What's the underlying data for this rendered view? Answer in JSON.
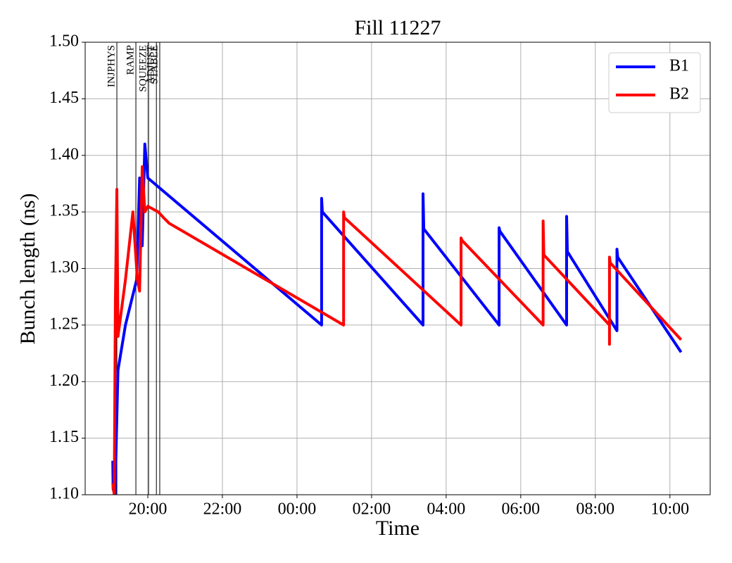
{
  "chart_data": {
    "type": "line",
    "title": "Fill 11227",
    "xlabel": "Time",
    "ylabel": "Bunch length (ns)",
    "xlim": [
      18.32,
      35.08
    ],
    "xticks": [
      {
        "value": 20,
        "label": "20:00"
      },
      {
        "value": 22,
        "label": "22:00"
      },
      {
        "value": 24,
        "label": "00:00"
      },
      {
        "value": 26,
        "label": "02:00"
      },
      {
        "value": 28,
        "label": "04:00"
      },
      {
        "value": 30,
        "label": "06:00"
      },
      {
        "value": 32,
        "label": "08:00"
      },
      {
        "value": 34,
        "label": "10:00"
      }
    ],
    "ylim": [
      1.1,
      1.5
    ],
    "yticks": [
      {
        "value": 1.1,
        "label": "1.10"
      },
      {
        "value": 1.15,
        "label": "1.15"
      },
      {
        "value": 1.2,
        "label": "1.20"
      },
      {
        "value": 1.25,
        "label": "1.25"
      },
      {
        "value": 1.3,
        "label": "1.30"
      },
      {
        "value": 1.35,
        "label": "1.35"
      },
      {
        "value": 1.4,
        "label": "1.40"
      },
      {
        "value": 1.45,
        "label": "1.45"
      },
      {
        "value": 1.5,
        "label": "1.50"
      }
    ],
    "grid": true,
    "legend": "upper right",
    "annotations": [
      {
        "label": "INJPHYS",
        "x": 19.17
      },
      {
        "label": "RAMP",
        "x": 19.68
      },
      {
        "label": "SQUEEZE",
        "x": 20.02
      },
      {
        "label": "ADJUST",
        "x": 20.23
      },
      {
        "label": "STABLE",
        "x": 20.32
      }
    ],
    "series": [
      {
        "name": "B1",
        "color": "#0000ff",
        "x": [
          19.06,
          19.07,
          19.12,
          19.2,
          19.4,
          19.55,
          19.7,
          19.78,
          19.85,
          19.92,
          20.0,
          24.66,
          24.66,
          24.68,
          27.38,
          27.38,
          27.4,
          29.42,
          29.42,
          29.44,
          31.23,
          31.23,
          31.25,
          32.58,
          32.58,
          32.6,
          34.3
        ],
        "values": [
          1.13,
          1.105,
          1.1,
          1.21,
          1.25,
          1.27,
          1.29,
          1.38,
          1.32,
          1.41,
          1.38,
          1.25,
          1.362,
          1.35,
          1.25,
          1.366,
          1.335,
          1.25,
          1.336,
          1.333,
          1.25,
          1.346,
          1.315,
          1.245,
          1.317,
          1.31,
          1.226
        ]
      },
      {
        "name": "B2",
        "color": "#ff0000",
        "x": [
          19.06,
          19.1,
          19.13,
          19.17,
          19.2,
          19.4,
          19.6,
          19.72,
          19.78,
          19.85,
          19.92,
          20.0,
          20.28,
          20.42,
          20.57,
          25.25,
          25.25,
          25.27,
          28.4,
          28.4,
          28.42,
          30.6,
          30.6,
          30.62,
          32.38,
          32.38,
          32.38,
          32.4,
          34.3
        ],
        "values": [
          1.11,
          1.1,
          1.27,
          1.37,
          1.24,
          1.29,
          1.35,
          1.29,
          1.28,
          1.39,
          1.35,
          1.355,
          1.35,
          1.345,
          1.34,
          1.25,
          1.35,
          1.345,
          1.25,
          1.327,
          1.325,
          1.25,
          1.342,
          1.312,
          1.25,
          1.233,
          1.31,
          1.305,
          1.237
        ]
      }
    ]
  }
}
